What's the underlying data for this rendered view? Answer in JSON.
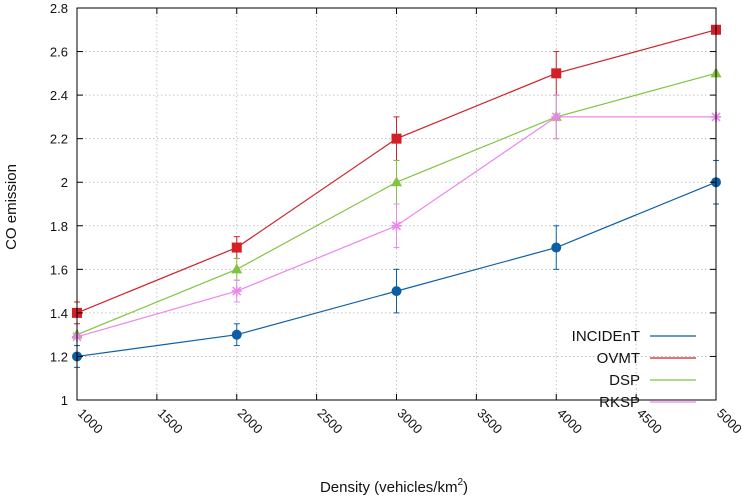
{
  "chart_data": {
    "type": "line",
    "title": "",
    "xlabel": "Density (vehicles/km",
    "xlabel_superscript": "2",
    "xlabel_suffix": ")",
    "ylabel": "CO emission",
    "xlim": [
      1000,
      5000
    ],
    "ylim": [
      1,
      2.8
    ],
    "x_ticks": [
      1000,
      1500,
      2000,
      2500,
      3000,
      3500,
      4000,
      4500,
      5000
    ],
    "y_ticks": [
      1,
      1.2,
      1.4,
      1.6,
      1.8,
      2,
      2.2,
      2.4,
      2.6,
      2.8
    ],
    "y_tick_labels": [
      "1",
      "1.2",
      "1.4",
      "1.6",
      "1.8",
      "2",
      "2.2",
      "2.4",
      "2.6",
      "2.8"
    ],
    "grid": true,
    "legend_position": "bottom-right",
    "x": [
      1000,
      2000,
      3000,
      4000,
      5000
    ],
    "series": [
      {
        "name": "INCIDEnT",
        "color": "#0c5fa6",
        "marker": "circle",
        "values": [
          1.2,
          1.3,
          1.5,
          1.7,
          2.0
        ],
        "errors": [
          0.05,
          0.05,
          0.1,
          0.1,
          0.1
        ]
      },
      {
        "name": "OVMT",
        "color": "#d31f26",
        "marker": "square",
        "values": [
          1.4,
          1.7,
          2.2,
          2.5,
          2.7
        ],
        "errors": [
          0.05,
          0.05,
          0.1,
          0.1,
          0.0
        ]
      },
      {
        "name": "DSP",
        "color": "#82c341",
        "marker": "triangle",
        "values": [
          1.3,
          1.6,
          2.0,
          2.3,
          2.5
        ],
        "errors": [
          0.0,
          0.05,
          0.1,
          0.1,
          0.0
        ]
      },
      {
        "name": "RKSP",
        "color": "#ea88ea",
        "marker": "star",
        "values": [
          1.29,
          1.5,
          1.8,
          2.3,
          2.3
        ],
        "errors": [
          0.0,
          0.05,
          0.1,
          0.1,
          0.0
        ]
      }
    ]
  }
}
